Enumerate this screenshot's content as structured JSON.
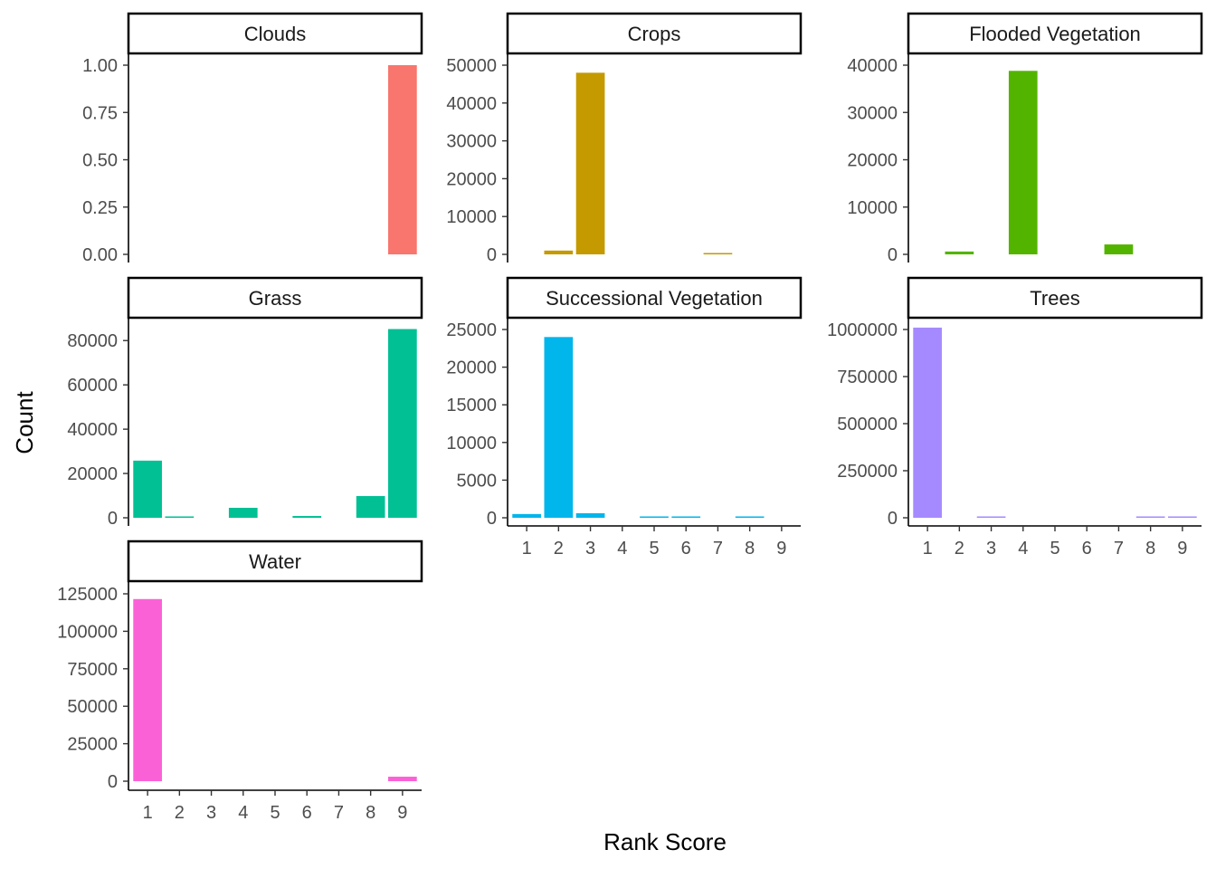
{
  "chart_data": {
    "type": "bar",
    "layout": "facet-wrap",
    "xlabel": "Rank Score",
    "ylabel": "Count",
    "x_categories": [
      "1",
      "2",
      "3",
      "4",
      "5",
      "6",
      "7",
      "8",
      "9"
    ],
    "panels": [
      {
        "name": "Clouds",
        "color": "#F8766D",
        "show_x_axis": false,
        "ylim": [
          0,
          1.0
        ],
        "y_ticks": [
          0,
          0.25,
          0.5,
          0.75,
          1.0
        ],
        "y_tick_labels": [
          "0.00",
          "0.25",
          "0.50",
          "0.75",
          "1.00"
        ],
        "values": [
          0,
          0,
          0,
          0,
          0,
          0,
          0,
          0,
          1
        ]
      },
      {
        "name": "Crops",
        "color": "#C49A00",
        "show_x_axis": false,
        "ylim": [
          0,
          50000
        ],
        "y_ticks": [
          0,
          10000,
          20000,
          30000,
          40000,
          50000
        ],
        "y_tick_labels": [
          "0",
          "10000",
          "20000",
          "30000",
          "40000",
          "50000"
        ],
        "values": [
          0,
          1000,
          48000,
          0,
          0,
          0,
          150,
          0,
          0
        ]
      },
      {
        "name": "Flooded Vegetation",
        "color": "#53B400",
        "show_x_axis": false,
        "ylim": [
          0,
          40000
        ],
        "y_ticks": [
          0,
          10000,
          20000,
          30000,
          40000
        ],
        "y_tick_labels": [
          "0",
          "10000",
          "20000",
          "30000",
          "40000"
        ],
        "values": [
          0,
          600,
          0,
          38800,
          0,
          0,
          2100,
          0,
          0
        ]
      },
      {
        "name": "Grass",
        "color": "#00C094",
        "show_x_axis": false,
        "ylim": [
          0,
          85000
        ],
        "y_ticks": [
          0,
          20000,
          40000,
          60000,
          80000
        ],
        "y_tick_labels": [
          "0",
          "20000",
          "40000",
          "60000",
          "80000"
        ],
        "values": [
          25800,
          500,
          0,
          4500,
          0,
          800,
          0,
          9800,
          85200
        ]
      },
      {
        "name": "Successional Vegetation",
        "color": "#00B6EB",
        "show_x_axis": true,
        "ylim": [
          0,
          25000
        ],
        "y_ticks": [
          0,
          5000,
          10000,
          15000,
          20000,
          25000
        ],
        "y_tick_labels": [
          "0",
          "5000",
          "10000",
          "15000",
          "20000",
          "25000"
        ],
        "values": [
          500,
          24000,
          600,
          0,
          100,
          100,
          0,
          100,
          0
        ]
      },
      {
        "name": "Trees",
        "color": "#A58AFF",
        "show_x_axis": true,
        "ylim": [
          0,
          1000000
        ],
        "y_ticks": [
          0,
          250000,
          500000,
          750000,
          1000000
        ],
        "y_tick_labels": [
          "0",
          "250000",
          "500000",
          "750000",
          "1000000"
        ],
        "values": [
          1010000,
          0,
          3000,
          0,
          0,
          0,
          0,
          2000,
          2000
        ]
      },
      {
        "name": "Water",
        "color": "#FB61D7",
        "show_x_axis": true,
        "ylim": [
          0,
          125000
        ],
        "y_ticks": [
          0,
          25000,
          50000,
          75000,
          100000,
          125000
        ],
        "y_tick_labels": [
          "0",
          "25000",
          "50000",
          "75000",
          "100000",
          "125000"
        ],
        "values": [
          121500,
          0,
          0,
          0,
          0,
          0,
          0,
          0,
          3000
        ]
      }
    ]
  }
}
